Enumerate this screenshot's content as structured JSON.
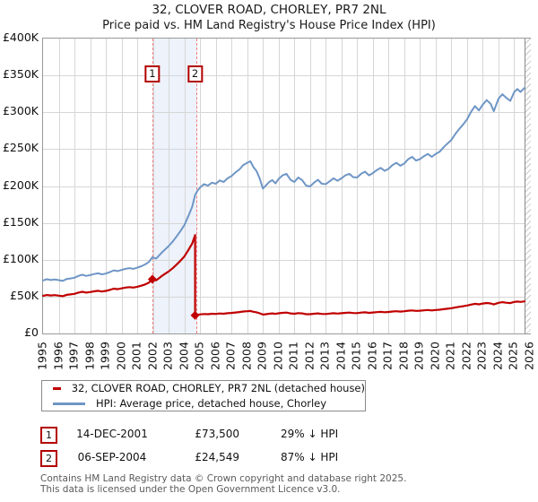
{
  "title": "32, CLOVER ROAD, CHORLEY, PR7 2NL",
  "subtitle": "Price paid vs. HM Land Registry's House Price Index (HPI)",
  "chart_data": {
    "type": "line",
    "x_axis": {
      "min": 1995,
      "max": 2026,
      "tick_years": [
        1995,
        1996,
        1997,
        1998,
        1999,
        2000,
        2001,
        2002,
        2003,
        2004,
        2005,
        2006,
        2007,
        2008,
        2009,
        2010,
        2011,
        2012,
        2013,
        2014,
        2015,
        2016,
        2017,
        2018,
        2019,
        2020,
        2021,
        2022,
        2023,
        2024,
        2025,
        2026
      ]
    },
    "y_axis": {
      "min": 0,
      "max": 400000,
      "ticks": [
        {
          "label": "£400K",
          "value": 400000
        },
        {
          "label": "£350K",
          "value": 350000
        },
        {
          "label": "£300K",
          "value": 300000
        },
        {
          "label": "£250K",
          "value": 250000
        },
        {
          "label": "£200K",
          "value": 200000
        },
        {
          "label": "£150K",
          "value": 150000
        },
        {
          "label": "£100K",
          "value": 100000
        },
        {
          "label": "£50K",
          "value": 50000
        },
        {
          "label": "£0",
          "value": 0
        }
      ]
    },
    "future_start_year": 2025.66,
    "sale_markers": [
      {
        "n": "1",
        "year": 2001.96,
        "value": 73500
      },
      {
        "n": "2",
        "year": 2004.68,
        "value": 24549
      }
    ],
    "colors": {
      "price": "#c00000",
      "hpi": "#6f96c5",
      "sale_line": "#f27d7d",
      "sale_shade": "#edf2fb"
    },
    "series": [
      {
        "name": "32, CLOVER ROAD, CHORLEY, PR7 2NL (detached house)",
        "color": "#c00000",
        "points": [
          [
            1995.0,
            51100
          ],
          [
            1995.25,
            52200
          ],
          [
            1995.5,
            51500
          ],
          [
            1995.75,
            52000
          ],
          [
            1996.0,
            51300
          ],
          [
            1996.25,
            50600
          ],
          [
            1996.5,
            52400
          ],
          [
            1996.75,
            53000
          ],
          [
            1997.0,
            53700
          ],
          [
            1997.25,
            55400
          ],
          [
            1997.5,
            56500
          ],
          [
            1997.75,
            55500
          ],
          [
            1998.0,
            56200
          ],
          [
            1998.25,
            57200
          ],
          [
            1998.5,
            57900
          ],
          [
            1998.75,
            56900
          ],
          [
            1999.0,
            57700
          ],
          [
            1999.25,
            59100
          ],
          [
            1999.5,
            60800
          ],
          [
            1999.75,
            60100
          ],
          [
            2000.0,
            61200
          ],
          [
            2000.25,
            62200
          ],
          [
            2000.5,
            62900
          ],
          [
            2000.75,
            62300
          ],
          [
            2001.0,
            63300
          ],
          [
            2001.25,
            64800
          ],
          [
            2001.5,
            66500
          ],
          [
            2001.75,
            69000
          ],
          [
            2001.96,
            73500
          ],
          [
            2002.2,
            72100
          ],
          [
            2002.4,
            75300
          ],
          [
            2002.6,
            78500
          ],
          [
            2002.8,
            81300
          ],
          [
            2003.0,
            84100
          ],
          [
            2003.25,
            88400
          ],
          [
            2003.5,
            93400
          ],
          [
            2003.75,
            98700
          ],
          [
            2004.0,
            104400
          ],
          [
            2004.25,
            112900
          ],
          [
            2004.5,
            122100
          ],
          [
            2004.68,
            133500
          ],
          [
            2004.68,
            24549
          ],
          [
            2004.85,
            25300
          ],
          [
            2005.0,
            25900
          ],
          [
            2005.25,
            26400
          ],
          [
            2005.5,
            26200
          ],
          [
            2005.75,
            26700
          ],
          [
            2006.0,
            26500
          ],
          [
            2006.25,
            27100
          ],
          [
            2006.5,
            26800
          ],
          [
            2006.75,
            27500
          ],
          [
            2007.0,
            27900
          ],
          [
            2007.25,
            28500
          ],
          [
            2007.5,
            29100
          ],
          [
            2007.75,
            29800
          ],
          [
            2008.0,
            30200
          ],
          [
            2008.2,
            30500
          ],
          [
            2008.4,
            29400
          ],
          [
            2008.6,
            28700
          ],
          [
            2008.8,
            27400
          ],
          [
            2009.0,
            25700
          ],
          [
            2009.2,
            26200
          ],
          [
            2009.4,
            26800
          ],
          [
            2009.6,
            27200
          ],
          [
            2009.8,
            26600
          ],
          [
            2010.0,
            27400
          ],
          [
            2010.25,
            28000
          ],
          [
            2010.5,
            28300
          ],
          [
            2010.75,
            27200
          ],
          [
            2011.0,
            26800
          ],
          [
            2011.25,
            27600
          ],
          [
            2011.5,
            27200
          ],
          [
            2011.75,
            26200
          ],
          [
            2012.0,
            26100
          ],
          [
            2012.25,
            26700
          ],
          [
            2012.5,
            27200
          ],
          [
            2012.75,
            26500
          ],
          [
            2013.0,
            26400
          ],
          [
            2013.25,
            27000
          ],
          [
            2013.5,
            27500
          ],
          [
            2013.75,
            27000
          ],
          [
            2014.0,
            27500
          ],
          [
            2014.25,
            28000
          ],
          [
            2014.5,
            28300
          ],
          [
            2014.75,
            27700
          ],
          [
            2015.0,
            27600
          ],
          [
            2015.25,
            28300
          ],
          [
            2015.5,
            28700
          ],
          [
            2015.75,
            28000
          ],
          [
            2016.0,
            28400
          ],
          [
            2016.25,
            28900
          ],
          [
            2016.5,
            29300
          ],
          [
            2016.75,
            28800
          ],
          [
            2017.0,
            29200
          ],
          [
            2017.25,
            29800
          ],
          [
            2017.5,
            30200
          ],
          [
            2017.75,
            29700
          ],
          [
            2018.0,
            30100
          ],
          [
            2018.25,
            30900
          ],
          [
            2018.5,
            31300
          ],
          [
            2018.75,
            30600
          ],
          [
            2019.0,
            30900
          ],
          [
            2019.25,
            31400
          ],
          [
            2019.5,
            31800
          ],
          [
            2019.75,
            31300
          ],
          [
            2020.0,
            31800
          ],
          [
            2020.25,
            32200
          ],
          [
            2020.5,
            33000
          ],
          [
            2020.75,
            33600
          ],
          [
            2021.0,
            34300
          ],
          [
            2021.25,
            35300
          ],
          [
            2021.5,
            36200
          ],
          [
            2021.75,
            37000
          ],
          [
            2022.0,
            37900
          ],
          [
            2022.25,
            39200
          ],
          [
            2022.5,
            40300
          ],
          [
            2022.75,
            39500
          ],
          [
            2023.0,
            40600
          ],
          [
            2023.25,
            41300
          ],
          [
            2023.5,
            40700
          ],
          [
            2023.7,
            39400
          ],
          [
            2024.0,
            41600
          ],
          [
            2024.25,
            42400
          ],
          [
            2024.5,
            41700
          ],
          [
            2024.75,
            41200
          ],
          [
            2025.0,
            42800
          ],
          [
            2025.2,
            43300
          ],
          [
            2025.4,
            42800
          ],
          [
            2025.66,
            43500
          ]
        ]
      },
      {
        "name": "HPI: Average price, detached house, Chorley",
        "color": "#6f96c5",
        "points": [
          [
            1995.0,
            72000
          ],
          [
            1995.25,
            73500
          ],
          [
            1995.5,
            72500
          ],
          [
            1995.75,
            73200
          ],
          [
            1996.0,
            72300
          ],
          [
            1996.25,
            71200
          ],
          [
            1996.5,
            73800
          ],
          [
            1996.75,
            74600
          ],
          [
            1997.0,
            75600
          ],
          [
            1997.25,
            78000
          ],
          [
            1997.5,
            79600
          ],
          [
            1997.75,
            78100
          ],
          [
            1998.0,
            79200
          ],
          [
            1998.25,
            80600
          ],
          [
            1998.5,
            81600
          ],
          [
            1998.75,
            80200
          ],
          [
            1999.0,
            81200
          ],
          [
            1999.25,
            83200
          ],
          [
            1999.5,
            85600
          ],
          [
            1999.75,
            84600
          ],
          [
            2000.0,
            86200
          ],
          [
            2000.25,
            87600
          ],
          [
            2000.5,
            88600
          ],
          [
            2000.75,
            87700
          ],
          [
            2001.0,
            89200
          ],
          [
            2001.25,
            91200
          ],
          [
            2001.5,
            93600
          ],
          [
            2001.75,
            97200
          ],
          [
            2001.96,
            103500
          ],
          [
            2002.2,
            101500
          ],
          [
            2002.4,
            106000
          ],
          [
            2002.6,
            110500
          ],
          [
            2002.8,
            114500
          ],
          [
            2003.0,
            118500
          ],
          [
            2003.25,
            124500
          ],
          [
            2003.5,
            131500
          ],
          [
            2003.75,
            139000
          ],
          [
            2004.0,
            147000
          ],
          [
            2004.25,
            159000
          ],
          [
            2004.5,
            172000
          ],
          [
            2004.68,
            188000
          ],
          [
            2004.85,
            194000
          ],
          [
            2005.0,
            198000
          ],
          [
            2005.25,
            202500
          ],
          [
            2005.5,
            200500
          ],
          [
            2005.75,
            204500
          ],
          [
            2006.0,
            203000
          ],
          [
            2006.25,
            207500
          ],
          [
            2006.5,
            205500
          ],
          [
            2006.75,
            210500
          ],
          [
            2007.0,
            213500
          ],
          [
            2007.25,
            218500
          ],
          [
            2007.5,
            222500
          ],
          [
            2007.75,
            228500
          ],
          [
            2008.0,
            231500
          ],
          [
            2008.2,
            233500
          ],
          [
            2008.4,
            225500
          ],
          [
            2008.6,
            220000
          ],
          [
            2008.8,
            210000
          ],
          [
            2009.0,
            196500
          ],
          [
            2009.2,
            201000
          ],
          [
            2009.4,
            205500
          ],
          [
            2009.6,
            208000
          ],
          [
            2009.8,
            203500
          ],
          [
            2010.0,
            209500
          ],
          [
            2010.25,
            214500
          ],
          [
            2010.5,
            216500
          ],
          [
            2010.75,
            208500
          ],
          [
            2011.0,
            205500
          ],
          [
            2011.25,
            211500
          ],
          [
            2011.5,
            208000
          ],
          [
            2011.75,
            200500
          ],
          [
            2012.0,
            199500
          ],
          [
            2012.25,
            204500
          ],
          [
            2012.5,
            208500
          ],
          [
            2012.75,
            203000
          ],
          [
            2013.0,
            202500
          ],
          [
            2013.25,
            206500
          ],
          [
            2013.5,
            210500
          ],
          [
            2013.75,
            207000
          ],
          [
            2014.0,
            210500
          ],
          [
            2014.25,
            214500
          ],
          [
            2014.5,
            216500
          ],
          [
            2014.75,
            212000
          ],
          [
            2015.0,
            211500
          ],
          [
            2015.25,
            216500
          ],
          [
            2015.5,
            219500
          ],
          [
            2015.75,
            214500
          ],
          [
            2016.0,
            217500
          ],
          [
            2016.25,
            221500
          ],
          [
            2016.5,
            224500
          ],
          [
            2016.75,
            220500
          ],
          [
            2017.0,
            223500
          ],
          [
            2017.25,
            228500
          ],
          [
            2017.5,
            231500
          ],
          [
            2017.75,
            227500
          ],
          [
            2018.0,
            230500
          ],
          [
            2018.25,
            236500
          ],
          [
            2018.5,
            239500
          ],
          [
            2018.75,
            234500
          ],
          [
            2019.0,
            236500
          ],
          [
            2019.25,
            240500
          ],
          [
            2019.5,
            243500
          ],
          [
            2019.75,
            239500
          ],
          [
            2020.0,
            243500
          ],
          [
            2020.25,
            246500
          ],
          [
            2020.5,
            252500
          ],
          [
            2020.75,
            257500
          ],
          [
            2021.0,
            262500
          ],
          [
            2021.25,
            270500
          ],
          [
            2021.5,
            277500
          ],
          [
            2021.75,
            283500
          ],
          [
            2022.0,
            290500
          ],
          [
            2022.25,
            300500
          ],
          [
            2022.5,
            308500
          ],
          [
            2022.75,
            302500
          ],
          [
            2023.0,
            310500
          ],
          [
            2023.25,
            316500
          ],
          [
            2023.5,
            311500
          ],
          [
            2023.7,
            301500
          ],
          [
            2024.0,
            318500
          ],
          [
            2024.25,
            324500
          ],
          [
            2024.5,
            319500
          ],
          [
            2024.75,
            315500
          ],
          [
            2025.0,
            327500
          ],
          [
            2025.2,
            331500
          ],
          [
            2025.4,
            327500
          ],
          [
            2025.66,
            333000
          ]
        ]
      }
    ]
  },
  "legend": {
    "items": [
      {
        "label": "32, CLOVER ROAD, CHORLEY, PR7 2NL (detached house)",
        "color": "#c00000"
      },
      {
        "label": "HPI: Average price, detached house, Chorley",
        "color": "#6f96c5"
      }
    ]
  },
  "annotations": [
    {
      "num": "1",
      "date": "14-DEC-2001",
      "price": "£73,500",
      "hpi": "29% ↓ HPI"
    },
    {
      "num": "2",
      "date": "06-SEP-2004",
      "price": "£24,549",
      "hpi": "87% ↓ HPI"
    }
  ],
  "footer": {
    "line1": "Contains HM Land Registry data © Crown copyright and database right 2025.",
    "line2": "This data is licensed under the Open Government Licence v3.0."
  }
}
